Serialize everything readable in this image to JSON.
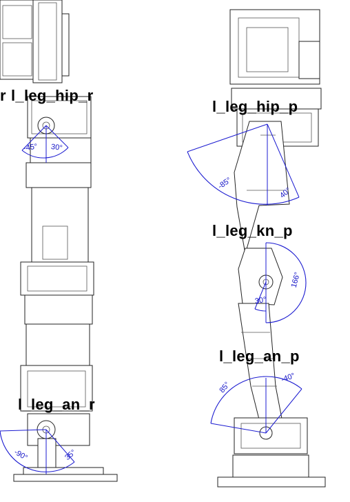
{
  "joints": {
    "hip_r": {
      "label": "l_leg_hip_r",
      "angle_neg": "-45°",
      "angle_pos": "30°"
    },
    "an_r": {
      "label": "l_leg_an_r",
      "angle_neg": "-90°",
      "angle_pos": "35°"
    },
    "hip_p": {
      "label": "l_leg_hip_p",
      "angle_neg": "-85°",
      "angle_pos": "40°"
    },
    "kn_p": {
      "label": "l_leg_kn_p",
      "angle_neg": "30°",
      "angle_pos": "166°"
    },
    "an_p": {
      "label": "l_leg_an_p",
      "angle_neg": "85°",
      "angle_pos": "-40°"
    }
  },
  "colors": {
    "annotation": "#1a1ad0",
    "outline": "#222222",
    "label": "#000000"
  }
}
